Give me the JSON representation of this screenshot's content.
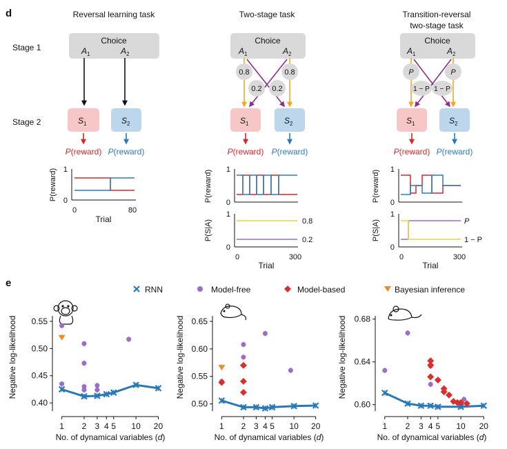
{
  "panel_d": {
    "label": "d",
    "tasks": [
      "Reversal learning task",
      "Two-stage task",
      "Transition-reversal",
      "two-stage task"
    ],
    "stage1": "Stage 1",
    "stage2": "Stage 2",
    "choice": "Choice",
    "action1": "A",
    "action2": "A",
    "sub1": "1",
    "sub2": "2",
    "state1": "S",
    "state2": "S",
    "reward_p": "P",
    "reward_word": "(reward)",
    "prob_08": "0.8",
    "prob_02": "0.2",
    "prob_p": "P",
    "prob_1mp": "1 − P",
    "ylabel_reward": "P(reward)",
    "ylabel_trans": "P(S|A)",
    "xlabel": "Trial",
    "ticks_0": "0",
    "ticks_1": "1",
    "ticks_80": "80",
    "ticks_300": "300",
    "line_08": "0.8",
    "line_02": "0.2",
    "line_p": "P",
    "line_1mp": "1 − P"
  },
  "panel_e": {
    "label": "e",
    "legend": [
      "RNN",
      "Model-free",
      "Model-based",
      "Bayesian inference"
    ],
    "xlabel": "No. of dynamical variables (",
    "xlabel_var": "d",
    "xlabel_end": ")",
    "ylabel": "Negative log-likelihood"
  },
  "colors": {
    "rnn": "#2878b5",
    "model_free": "#9b6cc9",
    "model_based": "#d9302c",
    "bayes": "#f08a24",
    "red": "#d62728",
    "blue": "#2b7bb9",
    "orange": "#f5a623",
    "purple": "#8e2d8b",
    "yellow": "#f0d43a",
    "stage_box": "#d9d9d9",
    "s1_box": "#f7c6c6",
    "s2_box": "#bcd6ec"
  },
  "chart_data": [
    {
      "type": "scatter",
      "subject": "monkey",
      "xscale": "log",
      "xticks": [
        1,
        2,
        3,
        4,
        5,
        10,
        20
      ],
      "yticks": [
        0.4,
        0.45,
        0.5,
        0.55
      ],
      "ylim": [
        0.385,
        0.56
      ],
      "series": [
        {
          "name": "RNN",
          "x": [
            1,
            2,
            3,
            4,
            5,
            10,
            20
          ],
          "y": [
            0.425,
            0.412,
            0.413,
            0.416,
            0.419,
            0.433,
            0.427
          ]
        },
        {
          "name": "Model-free",
          "x": [
            1,
            1,
            2,
            2,
            2,
            2,
            3,
            3,
            8
          ],
          "y": [
            0.542,
            0.435,
            0.509,
            0.473,
            0.43,
            0.424,
            0.432,
            0.424,
            0.517
          ]
        },
        {
          "name": "Bayesian inference",
          "x": [
            1
          ],
          "y": [
            0.521
          ]
        }
      ]
    },
    {
      "type": "scatter",
      "subject": "rat",
      "xscale": "log",
      "xticks": [
        1,
        2,
        3,
        4,
        5,
        10,
        20
      ],
      "yticks": [
        0.5,
        0.55,
        0.6,
        0.65
      ],
      "ylim": [
        0.487,
        0.66
      ],
      "series": [
        {
          "name": "RNN",
          "x": [
            1,
            2,
            3,
            4,
            5,
            10,
            20
          ],
          "y": [
            0.506,
            0.494,
            0.494,
            0.492,
            0.494,
            0.496,
            0.497
          ]
        },
        {
          "name": "Model-free",
          "x": [
            1,
            2,
            2,
            4,
            9
          ],
          "y": [
            0.541,
            0.608,
            0.585,
            0.628,
            0.561
          ]
        },
        {
          "name": "Model-based",
          "x": [
            1,
            2,
            2,
            2
          ],
          "y": [
            0.539,
            0.57,
            0.541,
            0.521
          ]
        },
        {
          "name": "Bayesian inference",
          "x": [
            1
          ],
          "y": [
            0.567
          ]
        }
      ]
    },
    {
      "type": "scatter",
      "subject": "mouse",
      "xscale": "log",
      "xticks": [
        1,
        2,
        3,
        4,
        5,
        10,
        20
      ],
      "yticks": [
        0.6,
        0.64,
        0.68
      ],
      "ylim": [
        0.594,
        0.683
      ],
      "series": [
        {
          "name": "RNN",
          "x": [
            1,
            2,
            3,
            4,
            5,
            10,
            20
          ],
          "y": [
            0.611,
            0.601,
            0.599,
            0.599,
            0.598,
            0.598,
            0.599
          ]
        },
        {
          "name": "Model-free",
          "x": [
            1,
            2,
            4,
            4,
            11
          ],
          "y": [
            0.632,
            0.667,
            0.636,
            0.619,
            0.605
          ]
        },
        {
          "name": "Model-based",
          "x": [
            4,
            4,
            4,
            5,
            6,
            6,
            7,
            8,
            9,
            10,
            12
          ],
          "y": [
            0.641,
            0.637,
            0.626,
            0.623,
            0.615,
            0.612,
            0.609,
            0.603,
            0.602,
            0.602,
            0.601
          ]
        }
      ]
    }
  ]
}
